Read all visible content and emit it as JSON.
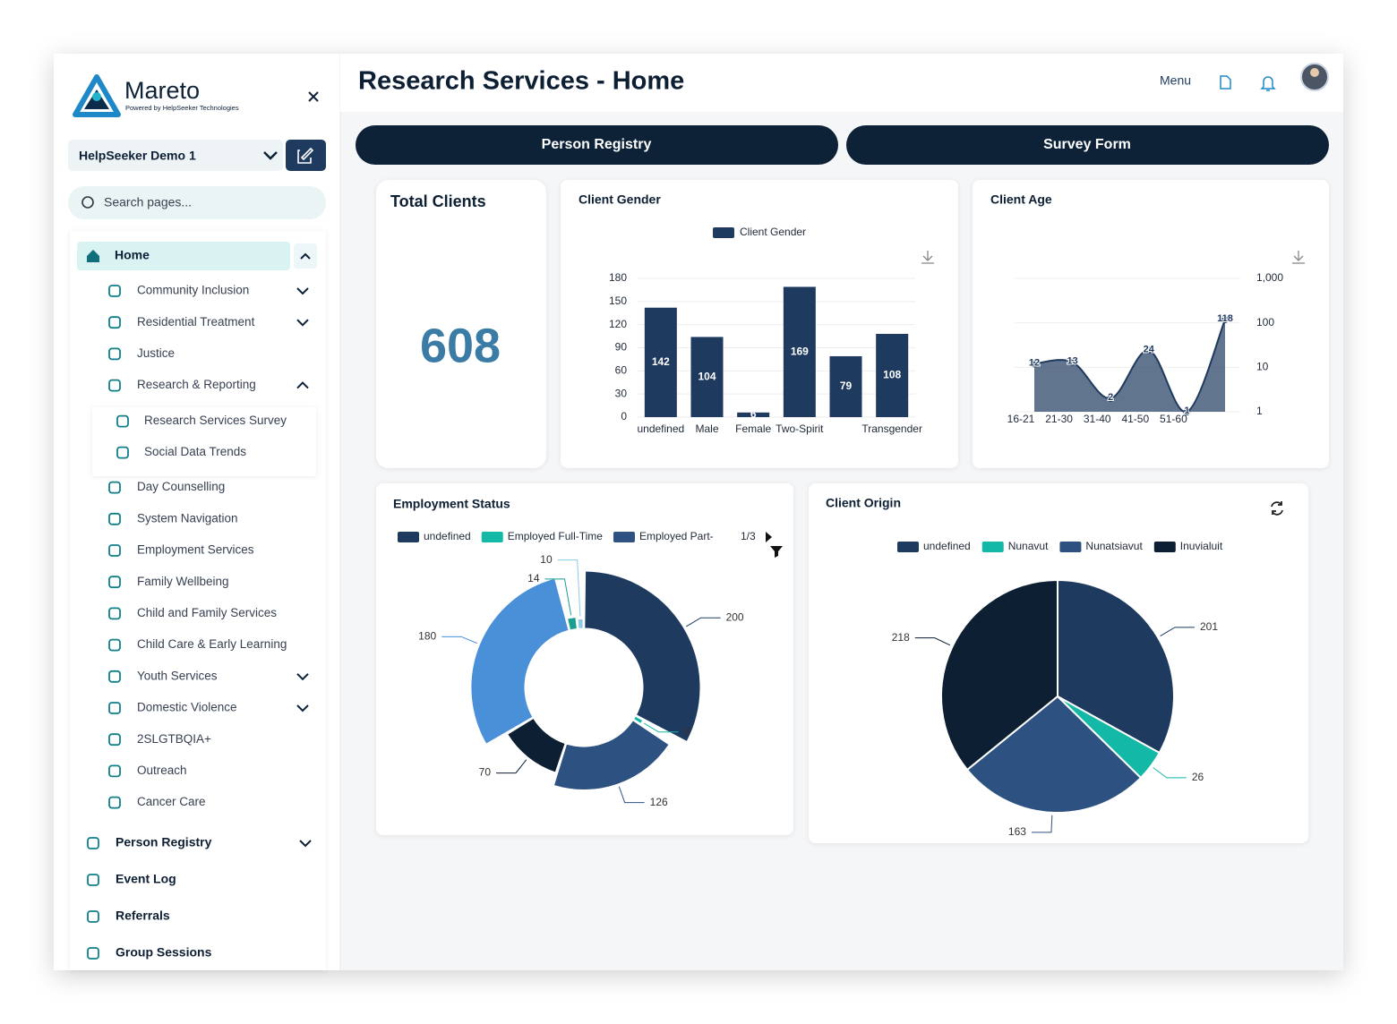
{
  "sidebar": {
    "brand": "Mareto",
    "tagline": "Powered by HelpSeeker Technologies",
    "organization": "HelpSeeker Demo 1",
    "search_placeholder": "Search pages...",
    "home": "Home",
    "home_items": [
      {
        "label": "Community Inclusion",
        "chevron": "down"
      },
      {
        "label": "Residential Treatment",
        "chevron": "down"
      },
      {
        "label": "Justice"
      },
      {
        "label": "Research & Reporting",
        "chevron": "up",
        "children": [
          "Research Services Survey",
          "Social Data Trends"
        ]
      },
      {
        "label": "Day Counselling"
      },
      {
        "label": "System Navigation"
      },
      {
        "label": "Employment Services"
      },
      {
        "label": "Family Wellbeing"
      },
      {
        "label": "Child and Family Services"
      },
      {
        "label": "Child Care & Early Learning"
      },
      {
        "label": "Youth Services",
        "chevron": "down"
      },
      {
        "label": "Domestic Violence",
        "chevron": "down"
      },
      {
        "label": "2SLGTBQIA+"
      },
      {
        "label": "Outreach"
      },
      {
        "label": "Cancer Care"
      }
    ],
    "main_items": [
      {
        "label": "Person Registry",
        "chevron": "down"
      },
      {
        "label": "Event Log"
      },
      {
        "label": "Referrals"
      },
      {
        "label": "Group Sessions"
      }
    ]
  },
  "header": {
    "title": "Research Services - Home",
    "menu": "Menu"
  },
  "actions": [
    "Person Registry",
    "Survey Form"
  ],
  "total_clients": {
    "title": "Total Clients",
    "value": 608
  },
  "chart_data": [
    {
      "type": "bar",
      "title": "Client Gender",
      "categories": [
        "undefined",
        "Male",
        "Female",
        "Two-Spirit",
        null,
        "Transgender"
      ],
      "series": [
        {
          "name": "Client Gender",
          "color": "#1f3a5f",
          "values": [
            142,
            104,
            6,
            169,
            79,
            108
          ]
        }
      ],
      "ylim": [
        0,
        180
      ],
      "yticks": [
        0,
        30,
        60,
        90,
        120,
        150,
        180
      ],
      "grid": true
    },
    {
      "type": "area",
      "title": "Client Age",
      "categories": [
        "16-21",
        "21-30",
        "31-40",
        "41-50",
        "51-60",
        null
      ],
      "series": [
        {
          "color": "#1f3a5f",
          "values": [
            12,
            13,
            2,
            24,
            1,
            118
          ]
        }
      ],
      "log_scale": true,
      "ylim": [
        1,
        1000
      ],
      "yticks": [
        1,
        10,
        100,
        {
          "value": 1000,
          "label": "1,000"
        }
      ],
      "y_axis_side": "right",
      "grid": true
    },
    {
      "type": "donut",
      "title": "Employment Status",
      "categories": [
        "undefined",
        "Employed Full-Time",
        "Employed Part-",
        null,
        null,
        null,
        null
      ],
      "values": [
        200,
        8,
        126,
        70,
        180,
        14,
        10
      ],
      "colors": [
        "#1f3a5f",
        "#14b8a6",
        "#2d5180",
        "#0d1f33",
        "#4a90d9",
        "#1a9e8f",
        "#8ecae6"
      ],
      "legend_page": "1/3"
    },
    {
      "type": "pie",
      "title": "Client Origin",
      "categories": [
        "undefined",
        "Nunavut",
        "Nunatsiavut",
        "Inuvialuit"
      ],
      "values": [
        201,
        26,
        163,
        218
      ],
      "colors": [
        "#1f3a5f",
        "#14b8a6",
        "#2d5180",
        "#0d1f33"
      ]
    }
  ]
}
